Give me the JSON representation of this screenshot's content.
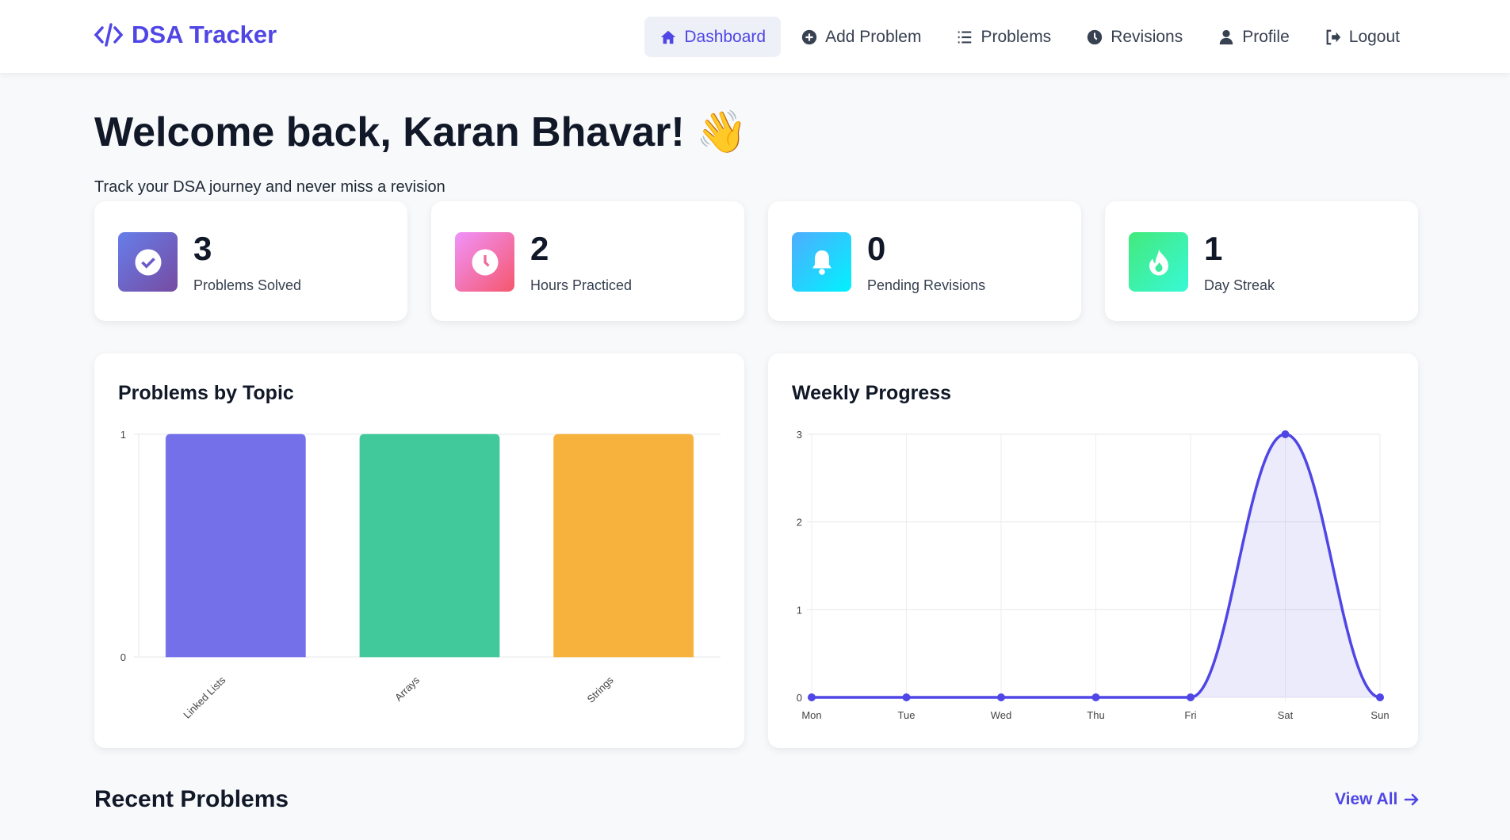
{
  "nav": {
    "logo": "DSA Tracker",
    "items": [
      {
        "label": "Dashboard",
        "icon": "home-icon",
        "active": true
      },
      {
        "label": "Add Problem",
        "icon": "plus-circle-icon"
      },
      {
        "label": "Problems",
        "icon": "list-icon"
      },
      {
        "label": "Revisions",
        "icon": "clock-icon"
      },
      {
        "label": "Profile",
        "icon": "user-icon"
      },
      {
        "label": "Logout",
        "icon": "logout-icon"
      }
    ]
  },
  "welcome": {
    "title": "Welcome back, Karan Bhavar!",
    "emoji": "👋",
    "subtitle": "Track your DSA journey and never miss a revision"
  },
  "stats": [
    {
      "value": "3",
      "label": "Problems Solved",
      "icon": "check-circle-icon",
      "colors": [
        "#667eea",
        "#764ba2"
      ]
    },
    {
      "value": "2",
      "label": "Hours Practiced",
      "icon": "clock-icon",
      "colors": [
        "#f093fb",
        "#f5576c"
      ]
    },
    {
      "value": "0",
      "label": "Pending Revisions",
      "icon": "bell-icon",
      "colors": [
        "#4facfe",
        "#00f2fe"
      ]
    },
    {
      "value": "1",
      "label": "Day Streak",
      "icon": "fire-icon",
      "colors": [
        "#43e97b",
        "#38f9d7"
      ]
    }
  ],
  "chart_data": [
    {
      "type": "bar",
      "title": "Problems by Topic",
      "categories": [
        "Linked Lists",
        "Arrays",
        "Strings"
      ],
      "values": [
        1,
        1,
        1
      ],
      "colors": [
        "#7370ea",
        "#42c99b",
        "#f7b13d"
      ],
      "ylim": [
        0,
        1
      ],
      "yticks": [
        "0",
        "1"
      ]
    },
    {
      "type": "area",
      "title": "Weekly Progress",
      "categories": [
        "Mon",
        "Tue",
        "Wed",
        "Thu",
        "Fri",
        "Sat",
        "Sun"
      ],
      "values": [
        0,
        0,
        0,
        0,
        0,
        3,
        0
      ],
      "color": "#4f46e5",
      "ylim": [
        0,
        3
      ],
      "yticks": [
        "0",
        "1",
        "2",
        "3"
      ]
    }
  ],
  "recent": {
    "title": "Recent Problems",
    "view_all": "View All"
  }
}
